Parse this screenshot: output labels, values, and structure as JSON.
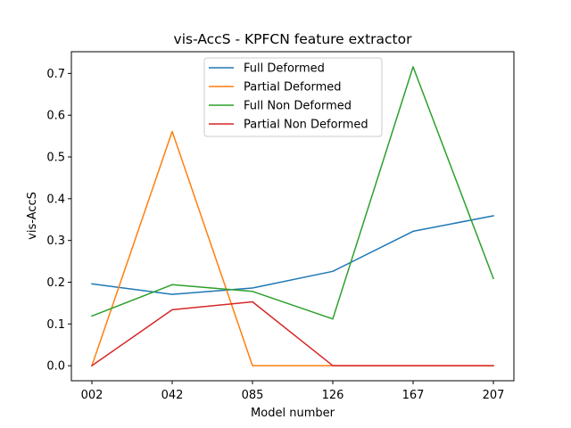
{
  "chart_data": {
    "type": "line",
    "title": "vis-AccS - KPFCN feature extractor",
    "xlabel": "Model number",
    "ylabel": "vis-AccS",
    "categories": [
      "002",
      "042",
      "085",
      "126",
      "167",
      "207"
    ],
    "ylim": [
      -0.036,
      0.752
    ],
    "yticks": [
      "0.0",
      "0.1",
      "0.2",
      "0.3",
      "0.4",
      "0.5",
      "0.6",
      "0.7"
    ],
    "grid": false,
    "legend_position": "top-center",
    "series": [
      {
        "name": "Full Deformed",
        "color": "#1f77b4",
        "values": [
          0.196,
          0.171,
          0.186,
          0.226,
          0.322,
          0.359
        ]
      },
      {
        "name": "Partial Deformed",
        "color": "#ff7f0e",
        "values": [
          0.0,
          0.561,
          0.0,
          0.0,
          0.0,
          0.0
        ]
      },
      {
        "name": "Full Non Deformed",
        "color": "#2ca02c",
        "values": [
          0.119,
          0.194,
          0.178,
          0.112,
          0.716,
          0.209
        ]
      },
      {
        "name": "Partial Non Deformed",
        "color": "#d62728",
        "values": [
          0.0,
          0.134,
          0.153,
          0.0,
          0.0,
          0.0
        ]
      }
    ]
  }
}
